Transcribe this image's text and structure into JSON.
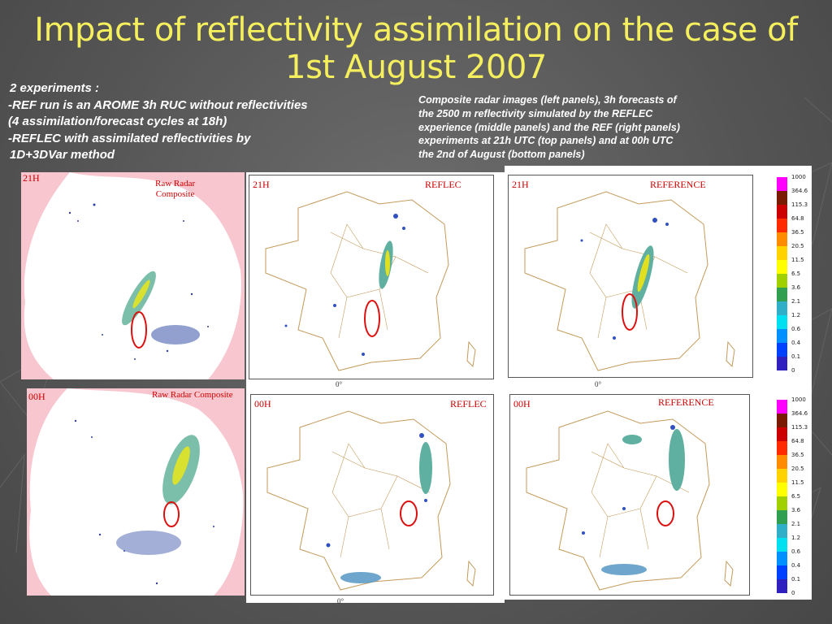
{
  "slide": {
    "title_line1": "Impact of reflectivity assimilation on the case of",
    "title_line2": "1st August 2007",
    "intro_lines": [
      "2 experiments :",
      "-REF run is an AROME 3h RUC without reflectivities",
      "(4 assimilation/forecast cycles at 18h)",
      "-REFLEC with assimilated reflectivities by",
      "1D+3DVar method"
    ],
    "desc_lines": [
      "Composite radar images (left panels), 3h forecasts of",
      "the 2500 m reflectivity simulated by the REFLEC",
      "experience (middle panels) and the REF (right panels)",
      "experiments at 21h UTC (top panels) and at 00h UTC",
      "the 2nd of August (bottom panels)"
    ]
  },
  "panels": {
    "radar_21h": {
      "time": "21H",
      "label_line1": "Raw Radar",
      "label_line2": "Composite"
    },
    "reflec_21h": {
      "time": "21H",
      "label": "REFLEC",
      "axis": "0°"
    },
    "reference_21h": {
      "time": "21H",
      "label": "REFERENCE",
      "axis": "0°"
    },
    "radar_00h": {
      "time": "00H",
      "label": "Raw Radar Composite"
    },
    "reflec_00h": {
      "time": "00H",
      "label": "REFLEC",
      "axis": "0°"
    },
    "reference_00h": {
      "time": "00H",
      "label": "REFERENCE",
      "axis": "0°"
    }
  },
  "legend": {
    "levels": [
      "1000",
      "364.6",
      "115.3",
      "64.8",
      "36.5",
      "20.5",
      "11.5",
      "6.5",
      "3.6",
      "2.1",
      "1.2",
      "0.6",
      "0.4",
      "0.1",
      "0"
    ],
    "colors": [
      "#ff00ff",
      "#7a1a00",
      "#cc0000",
      "#ff2a00",
      "#ff8c00",
      "#ffd200",
      "#ffff00",
      "#a0d000",
      "#30a050",
      "#30b0c8",
      "#00e0f0",
      "#0090ff",
      "#0040ff",
      "#3020c0",
      "#8020c0"
    ]
  },
  "highlight_color": "#dd1010"
}
